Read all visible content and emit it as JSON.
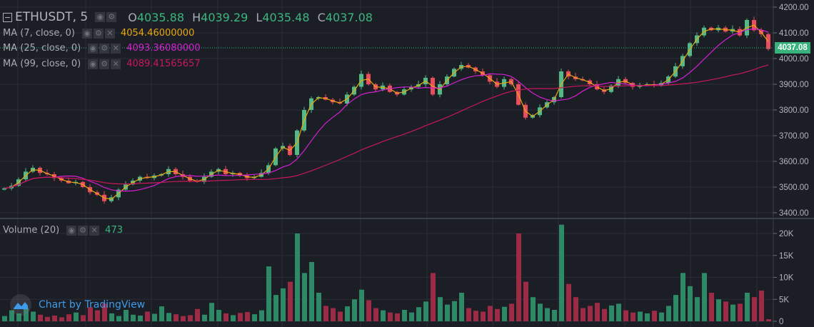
{
  "header": {
    "symbol": "ETHUSDT, 5",
    "open_label": "O",
    "open": "4035.88",
    "high_label": "H",
    "high": "4039.29",
    "low_label": "L",
    "low": "4035.48",
    "close_label": "C",
    "close": "4037.08"
  },
  "indicators": [
    {
      "label": "MA (7, close, 0)",
      "value": "4054.46000000",
      "color": "#e8a70f"
    },
    {
      "label": "MA (25, close, 0)",
      "value": "4093.36080000",
      "color": "#d51fd5"
    },
    {
      "label": "MA (99, close, 0)",
      "value": "4089.41565657",
      "color": "#c8185b"
    }
  ],
  "volume_legend": {
    "label": "Volume (20)",
    "value": "473"
  },
  "watermark": "Chart by TradingView",
  "last_price_label": "4037.08",
  "colors": {
    "up": "#53b987",
    "down": "#eb4d5c",
    "vol_up": "#2e8a66",
    "vol_down": "#9e2b45",
    "background": "#1c1e25",
    "grid": "#2a2d36"
  },
  "chart_data": {
    "type": "candlestick",
    "price_axis": {
      "ylim": [
        3400,
        4200
      ],
      "ticks": [
        "4200.00",
        "4100.00",
        "4000.00",
        "3900.00",
        "3800.00",
        "3700.00",
        "3600.00",
        "3500.00",
        "3400.00"
      ]
    },
    "volume_axis": {
      "ylim_k": [
        0,
        22
      ],
      "ticks": [
        "20K",
        "15K",
        "10K",
        "5K",
        "0"
      ]
    },
    "close": [
      3495,
      3505,
      3530,
      3560,
      3575,
      3555,
      3550,
      3535,
      3525,
      3515,
      3520,
      3500,
      3480,
      3470,
      3445,
      3460,
      3490,
      3510,
      3525,
      3540,
      3535,
      3545,
      3550,
      3570,
      3550,
      3540,
      3525,
      3520,
      3540,
      3560,
      3570,
      3550,
      3555,
      3545,
      3535,
      3540,
      3555,
      3585,
      3650,
      3660,
      3625,
      3720,
      3800,
      3845,
      3850,
      3840,
      3830,
      3825,
      3860,
      3890,
      3940,
      3900,
      3880,
      3895,
      3870,
      3860,
      3880,
      3890,
      3900,
      3925,
      3860,
      3900,
      3930,
      3960,
      3975,
      3965,
      3950,
      3935,
      3910,
      3890,
      3920,
      3900,
      3820,
      3770,
      3780,
      3810,
      3830,
      3850,
      3950,
      3930,
      3920,
      3915,
      3900,
      3880,
      3870,
      3895,
      3920,
      3905,
      3890,
      3895,
      3900,
      3895,
      3905,
      3930,
      3970,
      4010,
      4060,
      4090,
      4120,
      4110,
      4120,
      4105,
      4115,
      4090,
      4150,
      4110,
      4095,
      4037
    ],
    "volume_k": [
      1.2,
      2.5,
      1.8,
      3.0,
      2.2,
      1.5,
      1.0,
      1.3,
      0.9,
      1.6,
      2.0,
      1.4,
      3.2,
      2.5,
      4.0,
      1.8,
      1.2,
      2.6,
      1.5,
      1.3,
      2.2,
      1.7,
      3.4,
      1.9,
      1.6,
      1.2,
      1.4,
      2.8,
      1.5,
      4.2,
      2.6,
      1.8,
      1.4,
      1.9,
      2.1,
      1.6,
      2.5,
      12.5,
      6.0,
      7.5,
      9.0,
      20.0,
      11.0,
      13.5,
      6.5,
      3.5,
      3.0,
      2.2,
      3.4,
      5.0,
      7.2,
      4.8,
      3.0,
      2.5,
      2.0,
      1.8,
      2.6,
      2.0,
      3.2,
      4.5,
      11.0,
      5.5,
      3.8,
      4.6,
      6.5,
      3.0,
      2.4,
      2.2,
      3.5,
      2.8,
      3.3,
      4.0,
      20.0,
      9.0,
      5.5,
      4.0,
      3.0,
      2.6,
      22.0,
      8.5,
      5.5,
      3.0,
      3.5,
      4.2,
      2.8,
      3.6,
      4.0,
      2.5,
      2.0,
      2.2,
      1.8,
      2.4,
      2.0,
      3.5,
      6.0,
      11.0,
      8.0,
      5.5,
      11.0,
      6.5,
      5.0,
      4.5,
      3.8,
      4.0,
      6.5,
      5.5,
      7.0,
      0.47
    ],
    "last_price": 4037.08
  }
}
